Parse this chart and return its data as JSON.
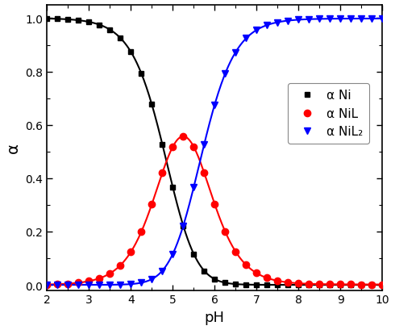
{
  "title": "",
  "xlabel": "pH",
  "ylabel": "α",
  "xlim": [
    2,
    10
  ],
  "ylim": [
    -0.02,
    1.05
  ],
  "xticks": [
    2,
    3,
    4,
    5,
    6,
    7,
    8,
    9,
    10
  ],
  "yticks": [
    0.0,
    0.2,
    0.4,
    0.6,
    0.8,
    1.0
  ],
  "legend_labels": [
    "α Ni",
    "α NiL",
    "α NiL₂"
  ],
  "line_colors": [
    "black",
    "red",
    "blue"
  ],
  "marker_styles": [
    "s",
    "o",
    "v"
  ],
  "marker_sizes": [
    5,
    6,
    6
  ],
  "line_width": 1.5,
  "figsize": [
    4.9,
    4.1
  ],
  "dpi": 100,
  "log_K1": 3.65,
  "log_K2": 2.85,
  "pKa": 8.5,
  "n_points": 500,
  "n_markers": 33
}
